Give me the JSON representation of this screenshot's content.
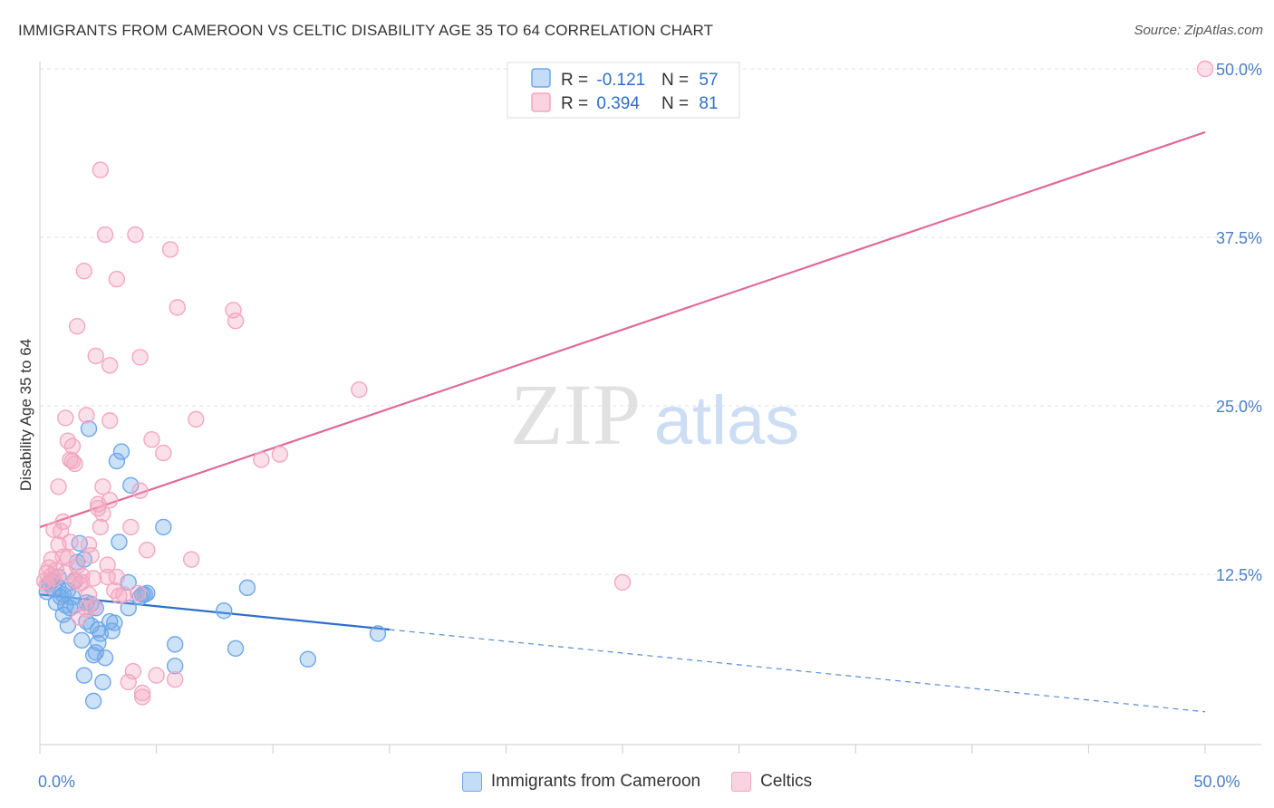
{
  "title": "IMMIGRANTS FROM CAMEROON VS CELTIC DISABILITY AGE 35 TO 64 CORRELATION CHART",
  "source": "Source: ZipAtlas.com",
  "watermark": {
    "zip": "ZIP",
    "atlas": "atlas"
  },
  "chart_data": {
    "type": "scatter",
    "ylabel": "Disability Age 35 to 64",
    "xlim": [
      0,
      50
    ],
    "ylim": [
      0,
      50
    ],
    "x_tick_labels": [
      {
        "value": 0,
        "label": "0.0%"
      },
      {
        "value": 50,
        "label": "50.0%"
      }
    ],
    "y_tick_labels": [
      {
        "value": 12.5,
        "label": "12.5%"
      },
      {
        "value": 25,
        "label": "25.0%"
      },
      {
        "value": 37.5,
        "label": "37.5%"
      },
      {
        "value": 50,
        "label": "50.0%"
      }
    ],
    "legend_stats": [
      {
        "r_label": "R = ",
        "r_value": "-0.121",
        "n_label": "N = ",
        "n_value": "57"
      },
      {
        "r_label": "R = ",
        "r_value": "0.394",
        "n_label": "N = ",
        "n_value": "81"
      }
    ],
    "series": [
      {
        "name": "Immigrants from Cameroon",
        "color": "#6fa8e8",
        "line_color": "#2f6fc9",
        "trend": {
          "x0": 0,
          "y0": 11.0,
          "x1": 15,
          "y1": 8.4,
          "dash_to_x": 50,
          "dash_to_y": 2.3
        },
        "points": [
          [
            0.3,
            11.2
          ],
          [
            0.5,
            12.0
          ],
          [
            0.6,
            11.4
          ],
          [
            0.7,
            10.4
          ],
          [
            0.8,
            11.5
          ],
          [
            0.9,
            10.8
          ],
          [
            1.0,
            11.0
          ],
          [
            1.0,
            9.5
          ],
          [
            1.1,
            10.2
          ],
          [
            1.2,
            8.7
          ],
          [
            1.3,
            10.0
          ],
          [
            1.4,
            10.8
          ],
          [
            1.5,
            10.2
          ],
          [
            1.5,
            12.0
          ],
          [
            1.6,
            13.4
          ],
          [
            1.7,
            14.8
          ],
          [
            1.8,
            7.6
          ],
          [
            1.9,
            13.6
          ],
          [
            1.9,
            5.0
          ],
          [
            2.0,
            10.4
          ],
          [
            2.0,
            9.0
          ],
          [
            2.1,
            23.3
          ],
          [
            2.2,
            8.7
          ],
          [
            2.2,
            10.3
          ],
          [
            2.3,
            6.5
          ],
          [
            2.3,
            3.1
          ],
          [
            2.4,
            6.7
          ],
          [
            2.5,
            7.4
          ],
          [
            2.5,
            8.4
          ],
          [
            2.6,
            8.1
          ],
          [
            2.7,
            4.5
          ],
          [
            2.8,
            6.3
          ],
          [
            3.0,
            9.0
          ],
          [
            3.1,
            8.3
          ],
          [
            3.3,
            20.9
          ],
          [
            3.4,
            14.9
          ],
          [
            3.5,
            21.6
          ],
          [
            3.8,
            11.9
          ],
          [
            3.8,
            10.0
          ],
          [
            3.9,
            19.1
          ],
          [
            4.3,
            10.8
          ],
          [
            4.4,
            11.0
          ],
          [
            4.5,
            11.0
          ],
          [
            5.3,
            16.0
          ],
          [
            5.8,
            5.7
          ],
          [
            5.8,
            7.3
          ],
          [
            7.9,
            9.8
          ],
          [
            8.4,
            7.0
          ],
          [
            8.9,
            11.5
          ],
          [
            11.5,
            6.2
          ],
          [
            14.5,
            8.1
          ],
          [
            0.4,
            11.8
          ],
          [
            0.8,
            12.3
          ],
          [
            1.2,
            11.3
          ],
          [
            2.4,
            10.0
          ],
          [
            3.2,
            8.9
          ],
          [
            4.6,
            11.1
          ]
        ]
      },
      {
        "name": "Celtics",
        "color": "#f3a7c0",
        "line_color": "#e06a97",
        "trend": {
          "x0": 0,
          "y0": 16.0,
          "x1": 50,
          "y1": 45.3
        },
        "points": [
          [
            0.2,
            12.0
          ],
          [
            0.3,
            12.6
          ],
          [
            0.3,
            11.7
          ],
          [
            0.4,
            13.0
          ],
          [
            0.5,
            13.6
          ],
          [
            0.5,
            12.4
          ],
          [
            0.6,
            15.8
          ],
          [
            0.7,
            12.8
          ],
          [
            0.8,
            14.7
          ],
          [
            0.8,
            19.0
          ],
          [
            0.9,
            15.7
          ],
          [
            1.0,
            16.4
          ],
          [
            1.0,
            13.8
          ],
          [
            1.1,
            24.1
          ],
          [
            1.1,
            12.6
          ],
          [
            1.2,
            22.4
          ],
          [
            1.3,
            21.0
          ],
          [
            1.3,
            14.9
          ],
          [
            1.4,
            22.0
          ],
          [
            1.4,
            20.9
          ],
          [
            1.5,
            20.7
          ],
          [
            1.5,
            12.1
          ],
          [
            1.6,
            30.9
          ],
          [
            1.6,
            13.1
          ],
          [
            1.7,
            11.8
          ],
          [
            1.8,
            11.9
          ],
          [
            1.8,
            12.4
          ],
          [
            1.9,
            35.0
          ],
          [
            2.0,
            24.3
          ],
          [
            2.0,
            9.9
          ],
          [
            2.1,
            14.7
          ],
          [
            2.1,
            11.0
          ],
          [
            2.2,
            13.9
          ],
          [
            2.3,
            10.1
          ],
          [
            2.3,
            12.2
          ],
          [
            2.4,
            28.7
          ],
          [
            2.5,
            17.7
          ],
          [
            2.5,
            17.4
          ],
          [
            2.6,
            16.0
          ],
          [
            2.6,
            42.5
          ],
          [
            2.7,
            17.0
          ],
          [
            2.7,
            19.0
          ],
          [
            2.8,
            37.7
          ],
          [
            2.9,
            13.2
          ],
          [
            3.0,
            23.9
          ],
          [
            3.0,
            28.0
          ],
          [
            3.0,
            18.0
          ],
          [
            3.2,
            11.3
          ],
          [
            3.3,
            34.4
          ],
          [
            3.3,
            12.3
          ],
          [
            3.4,
            10.9
          ],
          [
            3.6,
            11.0
          ],
          [
            3.8,
            4.5
          ],
          [
            3.9,
            16.0
          ],
          [
            4.0,
            5.3
          ],
          [
            4.1,
            37.7
          ],
          [
            4.3,
            28.6
          ],
          [
            4.3,
            18.7
          ],
          [
            4.4,
            3.4
          ],
          [
            4.4,
            3.7
          ],
          [
            4.6,
            14.3
          ],
          [
            4.8,
            22.5
          ],
          [
            5.0,
            5.0
          ],
          [
            5.3,
            21.5
          ],
          [
            5.6,
            36.6
          ],
          [
            5.8,
            4.7
          ],
          [
            5.9,
            32.3
          ],
          [
            6.5,
            13.6
          ],
          [
            6.7,
            24.0
          ],
          [
            8.3,
            32.1
          ],
          [
            8.4,
            31.3
          ],
          [
            9.5,
            21.0
          ],
          [
            10.3,
            21.4
          ],
          [
            13.7,
            26.2
          ],
          [
            25.0,
            11.9
          ],
          [
            50.0,
            50.0
          ],
          [
            0.6,
            12.2
          ],
          [
            1.2,
            13.7
          ],
          [
            2.9,
            12.3
          ],
          [
            4.2,
            11.1
          ],
          [
            1.7,
            9.3
          ]
        ]
      }
    ]
  }
}
